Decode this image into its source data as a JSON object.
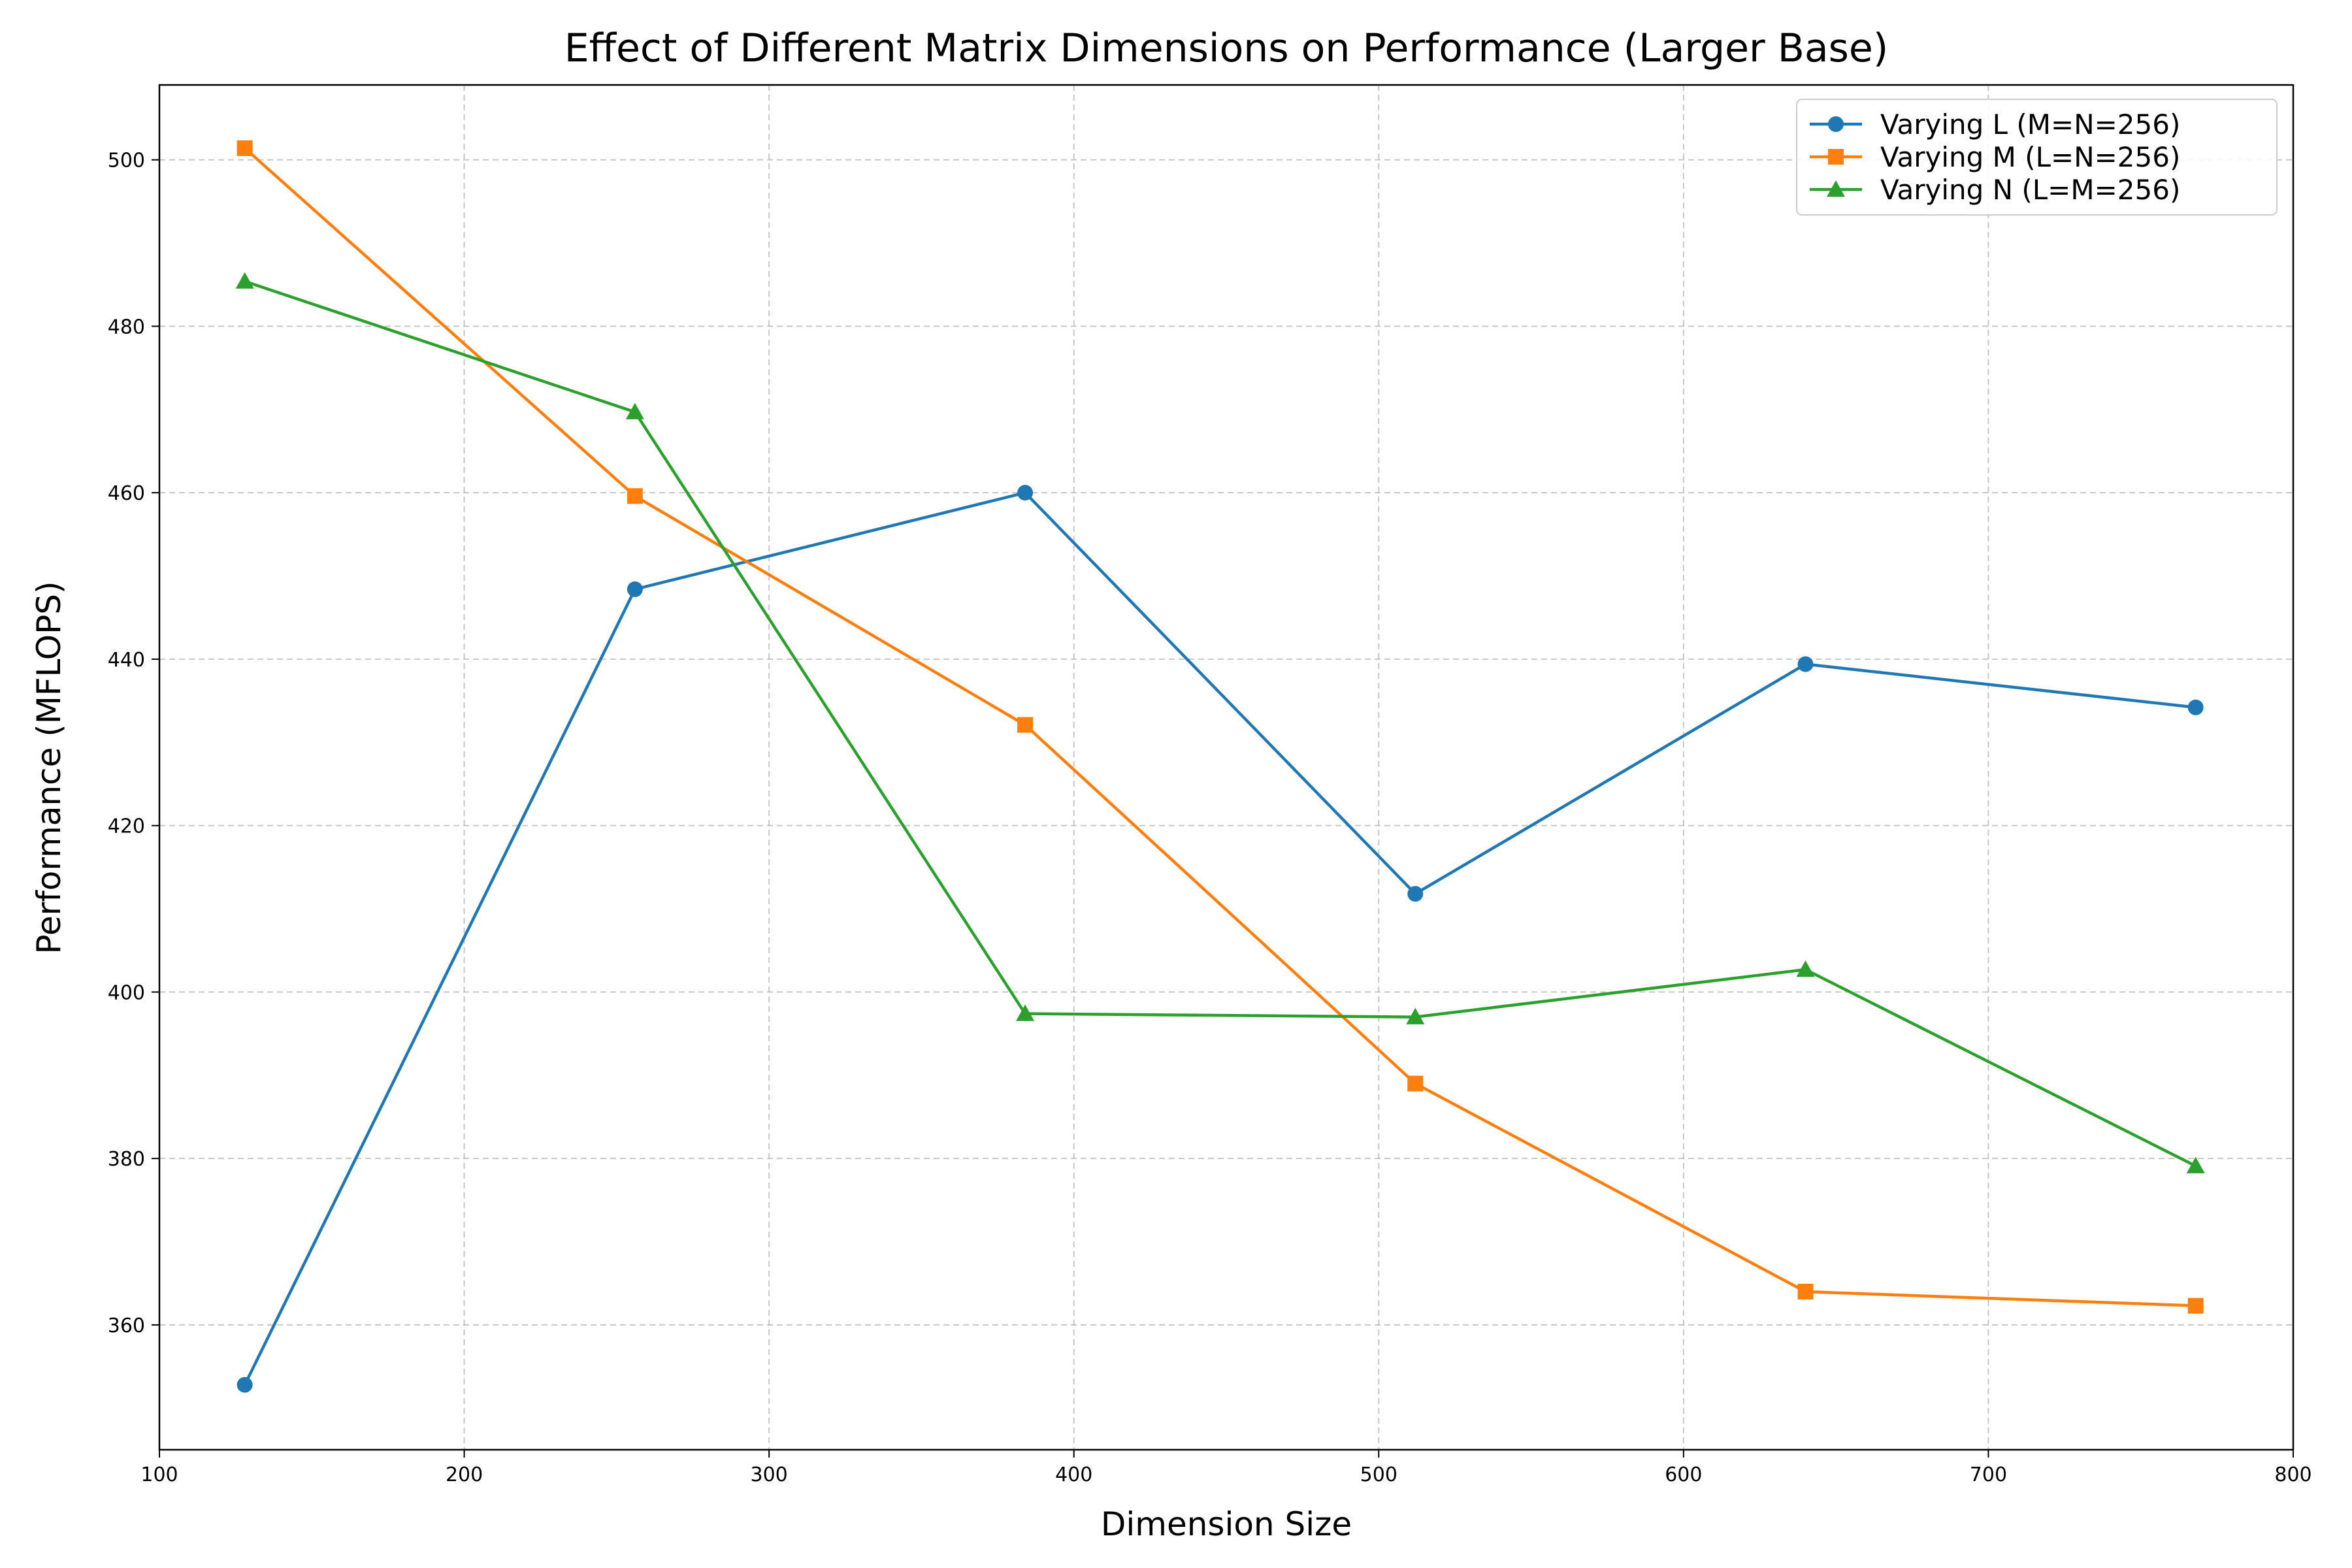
{
  "chart_data": {
    "type": "line",
    "title": "Effect of Different Matrix Dimensions on Performance (Larger Base)",
    "xlabel": "Dimension Size",
    "ylabel": "Performance (MFLOPS)",
    "xlim": [
      100,
      800
    ],
    "ylim": [
      345,
      509
    ],
    "xticks": [
      100,
      200,
      300,
      400,
      500,
      600,
      700,
      800
    ],
    "yticks": [
      360,
      380,
      400,
      420,
      440,
      460,
      480,
      500
    ],
    "grid": true,
    "legend_position": "top-right",
    "x": [
      128,
      256,
      384,
      512,
      640,
      768
    ],
    "series": [
      {
        "name": "Varying L (M=N=256)",
        "color": "#1f77b4",
        "marker": "circle",
        "values": [
          352.8,
          448.4,
          460.0,
          411.8,
          439.4,
          434.2
        ]
      },
      {
        "name": "Varying M (L=N=256)",
        "color": "#ff7f0e",
        "marker": "square",
        "values": [
          501.4,
          459.6,
          432.1,
          389.0,
          364.0,
          362.3
        ]
      },
      {
        "name": "Varying N (L=M=256)",
        "color": "#2ca02c",
        "marker": "triangle",
        "values": [
          485.4,
          469.7,
          397.4,
          397.0,
          402.7,
          379.1
        ]
      }
    ]
  }
}
